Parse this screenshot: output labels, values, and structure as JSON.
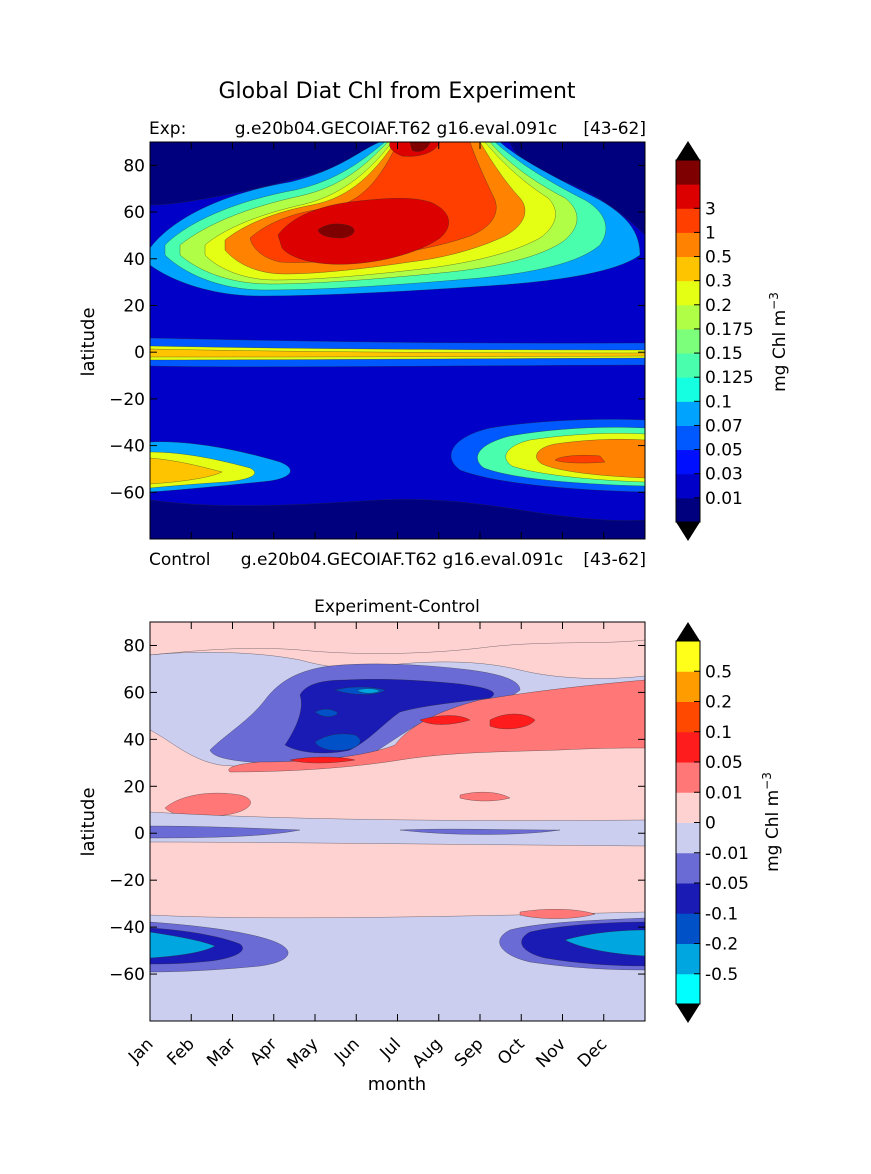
{
  "figure": {
    "suptitle": "Global Diat Chl from Experiment"
  },
  "chart_data": [
    {
      "type": "heatmap",
      "panel": "top",
      "title_left": "Exp:",
      "title_center": "g.e20b04.GECOIAF.T62 g16.eval.091c",
      "title_right": "[43-62]",
      "xlabel": "",
      "ylabel": "latitude",
      "xlim": [
        0,
        12
      ],
      "ylim": [
        -80,
        90
      ],
      "yticks": [
        80,
        60,
        40,
        20,
        0,
        -20,
        -40,
        -60
      ],
      "colorbar": {
        "label": "mg Chl m",
        "label_sup": "−3",
        "extend": "both",
        "labels": [
          "0.01",
          "0.03",
          "0.05",
          "0.07",
          "0.1",
          "0.125",
          "0.15",
          "0.175",
          "0.2",
          "0.3",
          "0.5",
          "1",
          "3"
        ],
        "colors": [
          "#00007f",
          "#0000c8",
          "#0010ff",
          "#0058ff",
          "#00a4ff",
          "#15ffe1",
          "#49ffad",
          "#7cff7a",
          "#b0ff46",
          "#e4ff13",
          "#ffc400",
          "#ff8200",
          "#ff3f00",
          "#dc0000",
          "#7f0000"
        ],
        "under_color": "#000000",
        "over_color": "#000000"
      },
      "regions": [
        {
          "name": "background",
          "level": 1
        },
        {
          "name": "arctic",
          "level": 0
        },
        {
          "name": "north-bloom-1",
          "level": 4
        },
        {
          "name": "north-bloom-2",
          "level": 6
        },
        {
          "name": "north-bloom-3",
          "level": 8
        },
        {
          "name": "north-bloom-4",
          "level": 9
        },
        {
          "name": "north-bloom-5",
          "level": 11
        },
        {
          "name": "north-bloom-6",
          "level": 12
        },
        {
          "name": "north-bloom-core",
          "level": 13
        },
        {
          "name": "north-bloom-peak",
          "level": 14
        },
        {
          "name": "equator-band-1",
          "level": 3
        },
        {
          "name": "equator-band-2",
          "level": 9
        },
        {
          "name": "equator-band-3",
          "level": 10
        },
        {
          "name": "south-bloom-1",
          "level": 3
        },
        {
          "name": "south-bloom-2",
          "level": 6
        },
        {
          "name": "south-bloom-3",
          "level": 9
        },
        {
          "name": "south-bloom-4",
          "level": 11
        },
        {
          "name": "south-bloom-5",
          "level": 12
        },
        {
          "name": "southwest-bloom-1",
          "level": 4
        },
        {
          "name": "southwest-bloom-2",
          "level": 9
        },
        {
          "name": "southwest-bloom-3",
          "level": 10
        },
        {
          "name": "antarctic",
          "level": 0
        }
      ]
    },
    {
      "type": "heatmap",
      "panel": "bottom",
      "title_left": "Control",
      "title_center": "g.e20b04.GECOIAF.T62 g16.eval.091c",
      "title_right": "[43-62]",
      "subtitle": "Experiment-Control",
      "xlabel": "month",
      "ylabel": "latitude",
      "xlim": [
        0,
        12
      ],
      "ylim": [
        -80,
        90
      ],
      "categories": [
        "Jan",
        "Feb",
        "Mar",
        "Apr",
        "May",
        "Jun",
        "Jul",
        "Aug",
        "Sep",
        "Oct",
        "Nov",
        "Dec"
      ],
      "yticks": [
        80,
        60,
        40,
        20,
        0,
        -20,
        -40,
        -60
      ],
      "colorbar": {
        "label": "mg Chl m",
        "label_sup": "−3",
        "extend": "both",
        "labels": [
          "-0.5",
          "-0.2",
          "-0.1",
          "-0.05",
          "-0.01",
          "0",
          "0.01",
          "0.05",
          "0.1",
          "0.2",
          "0.5"
        ],
        "colors": [
          "#00ffff",
          "#00a6e0",
          "#0050c8",
          "#1a1ab4",
          "#6b6bd6",
          "#cccef0",
          "#ffd2d2",
          "#ff7777",
          "#ff1c1c",
          "#ff4800",
          "#ff9c00",
          "#ffff1a"
        ],
        "under_color": "#000000",
        "over_color": "#000000"
      },
      "regions": [
        {
          "name": "background",
          "level": 6
        },
        {
          "name": "north-pos",
          "level": 6
        },
        {
          "name": "north-neg-1",
          "level": 5
        },
        {
          "name": "north-neg-2",
          "level": 4
        },
        {
          "name": "north-neg-3",
          "level": 3
        },
        {
          "name": "north-neg-4",
          "level": 2
        },
        {
          "name": "north-neg-5",
          "level": 1
        },
        {
          "name": "mid-pos-1",
          "level": 7
        },
        {
          "name": "mid-pos-2",
          "level": 8
        },
        {
          "name": "tropic-pos",
          "level": 7
        },
        {
          "name": "equator-neg-1",
          "level": 5
        },
        {
          "name": "equator-neg-2",
          "level": 4
        },
        {
          "name": "south-neg-1",
          "level": 5
        },
        {
          "name": "south-neg-2",
          "level": 4
        },
        {
          "name": "south-neg-3",
          "level": 3
        },
        {
          "name": "south-neg-4",
          "level": 1
        },
        {
          "name": "south-pos",
          "level": 7
        }
      ]
    }
  ]
}
